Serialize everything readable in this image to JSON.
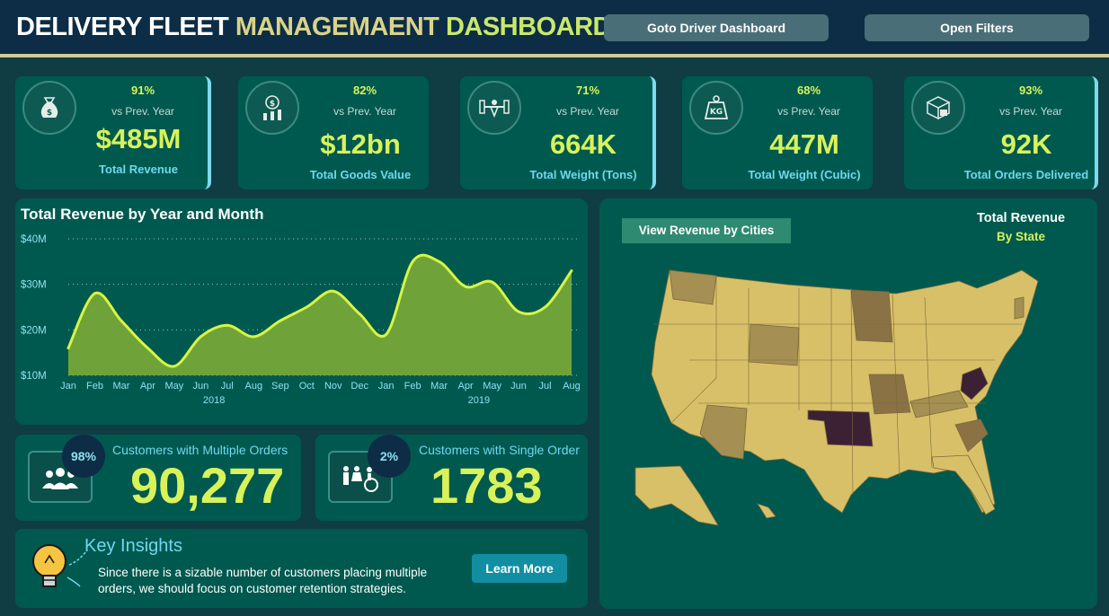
{
  "header": {
    "title_part1": "DELIVERY FLEET",
    "title_part2": "MANAGEMAENT",
    "title_part3": "DASHBOARD",
    "driver_button": "Goto Driver Dashboard",
    "filters_button": "Open Filters"
  },
  "kpis": [
    {
      "pct": "91%",
      "vs": "vs Prev. Year",
      "value": "$485M",
      "label": "Total Revenue",
      "icon": "money-bag-icon"
    },
    {
      "pct": "82%",
      "vs": "vs Prev. Year",
      "value": "$12bn",
      "label": "Total Goods Value",
      "icon": "coin-growth-icon"
    },
    {
      "pct": "71%",
      "vs": "vs Prev. Year",
      "value": "664K",
      "label": "Total Weight (Tons)",
      "icon": "weightlifting-icon"
    },
    {
      "pct": "68%",
      "vs": "vs Prev. Year",
      "value": "447M",
      "label": "Total Weight (Cubic)",
      "icon": "kg-weight-icon"
    },
    {
      "pct": "93%",
      "vs": "vs Prev. Year",
      "value": "92K",
      "label": "Total Orders Delivered",
      "icon": "boxes-icon"
    }
  ],
  "chart_data": {
    "type": "area",
    "title": "Total Revenue by Year and Month",
    "categories": [
      "Jan",
      "Feb",
      "Mar",
      "Apr",
      "May",
      "Jun",
      "Jul",
      "Aug",
      "Sep",
      "Oct",
      "Nov",
      "Dec",
      "Jan",
      "Feb",
      "Mar",
      "Apr",
      "May",
      "Jun",
      "Jul",
      "Aug"
    ],
    "years": [
      {
        "label": "2018",
        "start": 0,
        "end": 11
      },
      {
        "label": "2019",
        "start": 12,
        "end": 19
      }
    ],
    "values": [
      16,
      28,
      22,
      16,
      12,
      18.5,
      21,
      18.5,
      22,
      25,
      28.5,
      23.5,
      19,
      35,
      35,
      29.5,
      30.5,
      24,
      25,
      33
    ],
    "y_ticks": [
      10,
      20,
      30,
      40
    ],
    "y_tick_labels": [
      "$10M",
      "$20M",
      "$30M",
      "$40M"
    ],
    "ylim": [
      10,
      40
    ],
    "grid": true,
    "colors": {
      "fill": "#6fa33a",
      "line": "#d8f542"
    }
  },
  "customers": {
    "multiple": {
      "pct": "98%",
      "title": "Customers with Multiple Orders",
      "value": "90,277",
      "icon": "people-group-icon"
    },
    "single": {
      "pct": "2%",
      "title": "Customers with Single Order",
      "value": "1783",
      "icon": "family-accessibility-icon"
    }
  },
  "insights": {
    "title": "Key Insights",
    "text": "Since there is a sizable number of customers placing multiple orders, we should focus on customer retention strategies.",
    "button": "Learn More",
    "icon": "lightbulb-icon"
  },
  "map": {
    "button": "View Revenue by Cities",
    "title": "Total Revenue",
    "subtitle": "By State",
    "colors": {
      "low": "#d8c068",
      "mid": "#a68f52",
      "high": "#8a7245",
      "max": "#3c2135"
    }
  }
}
